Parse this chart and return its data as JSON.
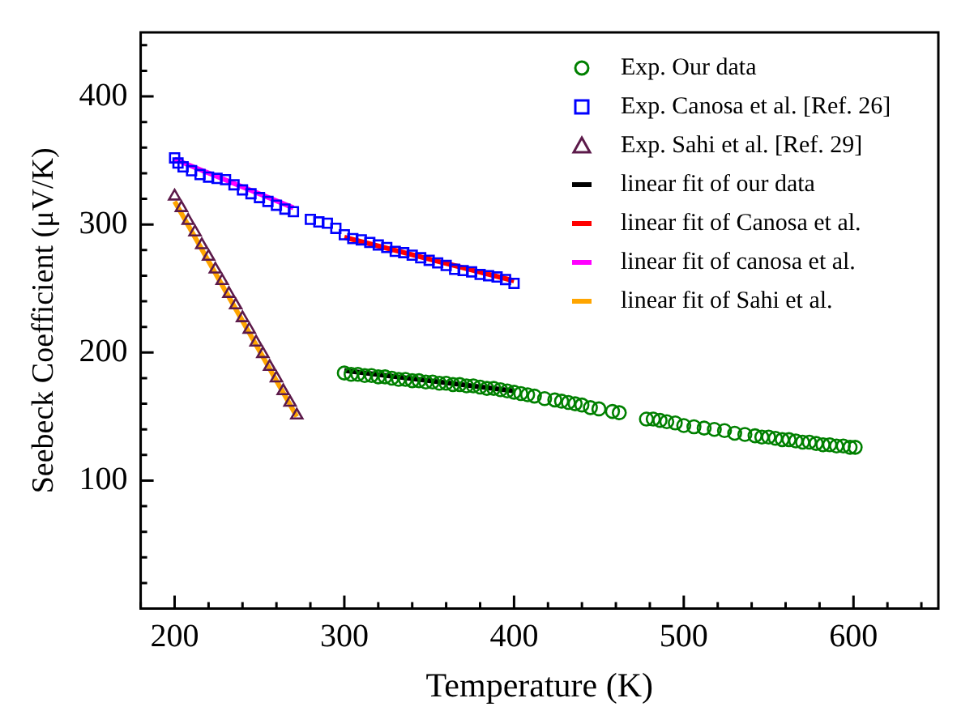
{
  "chart_data": {
    "type": "scatter",
    "xlabel": "Temperature (K)",
    "ylabel": "Seebeck Coefficient (μV/K)",
    "xlim": [
      180,
      650
    ],
    "ylim": [
      0,
      450
    ],
    "xticks": [
      {
        "value": 180,
        "label": null
      },
      200,
      {
        "value": 220,
        "label": null
      },
      {
        "value": 240,
        "label": null
      },
      {
        "value": 260,
        "label": null
      },
      {
        "value": 280,
        "label": null
      },
      300,
      {
        "value": 320,
        "label": null
      },
      {
        "value": 340,
        "label": null
      },
      {
        "value": 360,
        "label": null
      },
      {
        "value": 380,
        "label": null
      },
      400,
      {
        "value": 420,
        "label": null
      },
      {
        "value": 440,
        "label": null
      },
      {
        "value": 460,
        "label": null
      },
      {
        "value": 480,
        "label": null
      },
      500,
      {
        "value": 520,
        "label": null
      },
      {
        "value": 540,
        "label": null
      },
      {
        "value": 560,
        "label": null
      },
      {
        "value": 580,
        "label": null
      },
      600,
      {
        "value": 620,
        "label": null
      },
      {
        "value": 640,
        "label": null
      }
    ],
    "yticks": [
      {
        "value": 20,
        "label": null
      },
      {
        "value": 40,
        "label": null
      },
      {
        "value": 60,
        "label": null
      },
      {
        "value": 80,
        "label": null
      },
      100,
      {
        "value": 120,
        "label": null
      },
      {
        "value": 140,
        "label": null
      },
      {
        "value": 160,
        "label": null
      },
      {
        "value": 180,
        "label": null
      },
      200,
      {
        "value": 220,
        "label": null
      },
      {
        "value": 240,
        "label": null
      },
      {
        "value": 260,
        "label": null
      },
      {
        "value": 280,
        "label": null
      },
      300,
      {
        "value": 320,
        "label": null
      },
      {
        "value": 340,
        "label": null
      },
      {
        "value": 360,
        "label": null
      },
      {
        "value": 380,
        "label": null
      },
      400,
      {
        "value": 420,
        "label": null
      },
      {
        "value": 440,
        "label": null
      }
    ],
    "grid": false,
    "legend": "top right",
    "series": [
      {
        "name": "Exp. Our data",
        "type": "scatter",
        "marker": "circle",
        "color": "#008000",
        "x": [
          300,
          304,
          308,
          312,
          316,
          320,
          324,
          328,
          332,
          336,
          340,
          344,
          348,
          352,
          356,
          360,
          364,
          368,
          372,
          376,
          380,
          384,
          388,
          392,
          396,
          400,
          404,
          408,
          412,
          418,
          424,
          428,
          432,
          436,
          440,
          445,
          450,
          458,
          462,
          478,
          482,
          486,
          490,
          495,
          500,
          506,
          512,
          518,
          524,
          530,
          536,
          542,
          546,
          550,
          554,
          558,
          562,
          566,
          570,
          574,
          578,
          582,
          586,
          590,
          594,
          598,
          601
        ],
        "values": [
          184,
          183,
          183,
          182,
          182,
          181,
          181,
          180,
          179,
          179,
          178,
          178,
          177,
          177,
          176,
          176,
          175,
          175,
          174,
          174,
          173,
          172,
          172,
          171,
          170,
          169,
          168,
          167,
          166,
          164,
          163,
          162,
          161,
          160,
          159,
          157,
          156,
          154,
          153,
          148,
          148,
          147,
          146,
          145,
          143,
          142,
          141,
          140,
          139,
          137,
          136,
          135,
          134,
          134,
          133,
          132,
          132,
          131,
          130,
          130,
          129,
          128,
          128,
          127,
          127,
          126,
          126
        ]
      },
      {
        "name": "Exp. Canosa et al. [Ref. 26]",
        "type": "scatter",
        "marker": "square",
        "color": "#0000ff",
        "x": [
          200,
          202,
          205,
          210,
          215,
          220,
          225,
          230,
          235,
          240,
          245,
          250,
          255,
          260,
          265,
          270,
          280,
          285,
          290,
          295,
          300,
          305,
          310,
          315,
          320,
          325,
          330,
          335,
          340,
          345,
          350,
          355,
          360,
          365,
          370,
          375,
          380,
          385,
          390,
          395,
          400
        ],
        "values": [
          352,
          348,
          345,
          342,
          339,
          337,
          336,
          335,
          331,
          327,
          324,
          321,
          318,
          315,
          312,
          310,
          304,
          302,
          301,
          297,
          292,
          289,
          288,
          286,
          284,
          282,
          279,
          278,
          276,
          274,
          272,
          270,
          268,
          265,
          264,
          263,
          261,
          260,
          259,
          257,
          254
        ]
      },
      {
        "name": "Exp. Sahi et al. [Ref. 29]",
        "type": "scatter",
        "marker": "triangle",
        "color": "#5c1a4a",
        "x": [
          200,
          204,
          208,
          212,
          216,
          220,
          224,
          228,
          232,
          236,
          240,
          244,
          248,
          252,
          256,
          260,
          264,
          268,
          272
        ],
        "values": [
          322,
          313,
          303,
          294,
          284,
          275,
          265,
          256,
          246,
          237,
          227,
          218,
          208,
          199,
          189,
          180,
          170,
          161,
          151
        ]
      },
      {
        "name": "linear fit of our data",
        "type": "line",
        "marker": "none",
        "color": "#000000",
        "x": [
          300,
          400
        ],
        "values": [
          186,
          170
        ]
      },
      {
        "name": "linear fit of Canosa et al.",
        "type": "line",
        "marker": "none",
        "color": "#ff0000",
        "x": [
          300,
          400
        ],
        "values": [
          290,
          256
        ]
      },
      {
        "name": "linear fit of canosa et al.",
        "type": "line",
        "marker": "none",
        "color": "#ff00ff",
        "x": [
          200,
          270
        ],
        "values": [
          351,
          313
        ]
      },
      {
        "name": "linear fit of Sahi et al.",
        "type": "line",
        "marker": "none",
        "color": "#ffa500",
        "x": [
          200,
          272
        ],
        "values": [
          318,
          150
        ]
      }
    ]
  }
}
